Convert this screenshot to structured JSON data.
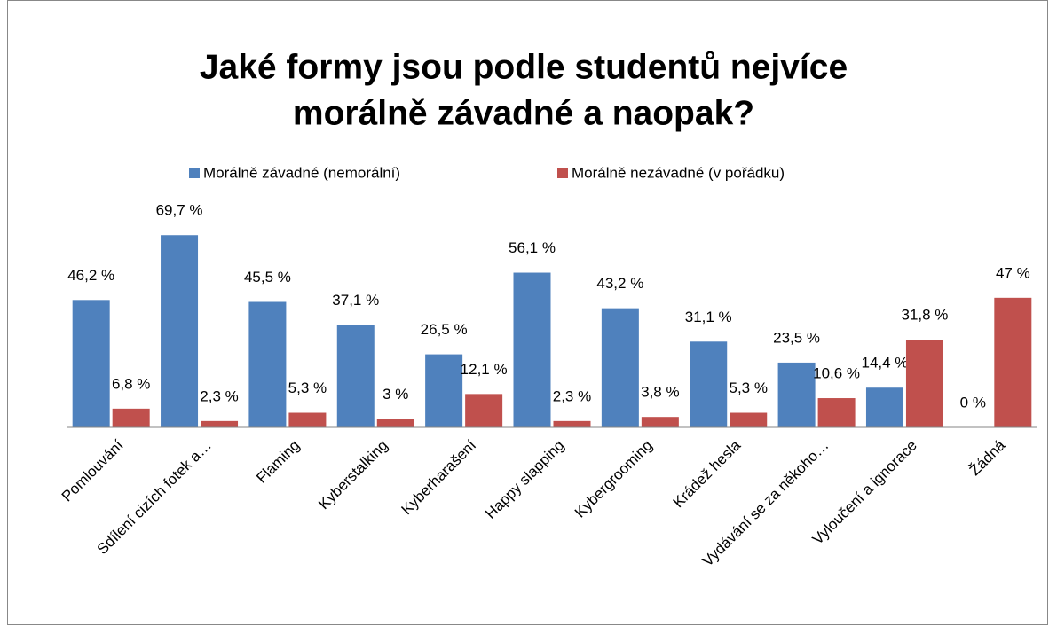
{
  "chart_data": {
    "type": "bar",
    "title": [
      "Jaké formy jsou podle studentů nejvíce",
      "morálně závadné a naopak?"
    ],
    "categories": [
      "Pomlouvání",
      "Sdílení cizích fotek a…",
      "Flaming",
      "Kyberstalking",
      "Kyberharašení",
      "Happy slapping",
      "Kybergrooming",
      "Krádež hesla",
      "Vydávání se za někoho…",
      "Vyloučení a ignorace",
      "Žádná"
    ],
    "series": [
      {
        "name": "Morálně závadné (nemorální)",
        "color": "#4f81bd",
        "values": [
          46.2,
          69.7,
          45.5,
          37.1,
          26.5,
          56.1,
          43.2,
          31.1,
          23.5,
          14.4,
          0
        ],
        "value_labels": [
          "46,2 %",
          "69,7 %",
          "45,5 %",
          "37,1 %",
          "26,5 %",
          "56,1 %",
          "43,2 %",
          "31,1 %",
          "23,5 %",
          "14,4 %",
          "0 %"
        ]
      },
      {
        "name": "Morálně nezávadné (v pořádku)",
        "color": "#c0504d",
        "values": [
          6.8,
          2.3,
          5.3,
          3,
          12.1,
          2.3,
          3.8,
          5.3,
          10.6,
          31.8,
          47
        ],
        "value_labels": [
          "6,8 %",
          "2,3 %",
          "5,3 %",
          "3 %",
          "12,1 %",
          "2,3 %",
          "3,8 %",
          "5,3 %",
          "10,6 %",
          "31,8 %",
          "47 %"
        ]
      }
    ],
    "legend": "top"
  }
}
